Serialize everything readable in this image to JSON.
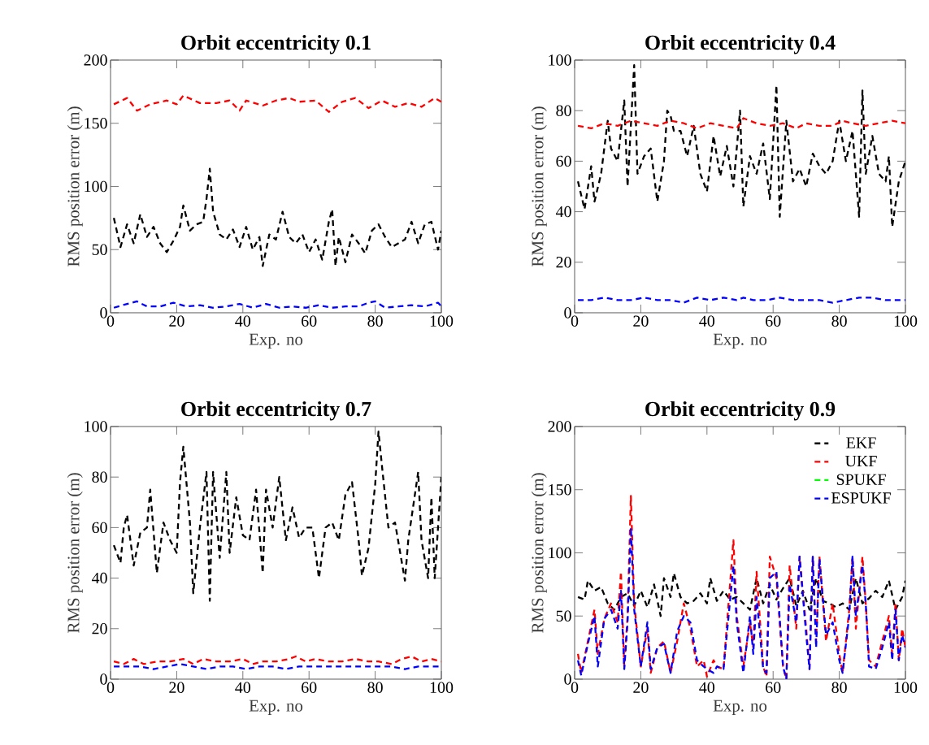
{
  "chart_data": [
    {
      "type": "line",
      "title": "Orbit eccentricity 0.1",
      "xlabel": "Exp. no",
      "ylabel": "RMS position error (m)",
      "xlim": [
        0,
        100
      ],
      "ylim": [
        0,
        200
      ],
      "xticks": [
        0,
        20,
        40,
        60,
        80,
        100
      ],
      "yticks": [
        0,
        50,
        100,
        150,
        200
      ],
      "line_style": "dashed",
      "marker": "none",
      "series": [
        {
          "color": "#000000",
          "x": [
            1,
            3,
            5,
            7,
            9,
            11,
            13,
            15,
            17,
            19,
            21,
            22,
            24,
            26,
            28,
            29,
            30,
            31,
            33,
            35,
            37,
            39,
            41,
            43,
            45,
            46,
            48,
            50,
            52,
            54,
            56,
            58,
            60,
            62,
            64,
            66,
            67,
            68,
            69,
            71,
            73,
            75,
            77,
            79,
            81,
            83,
            85,
            87,
            89,
            91,
            93,
            95,
            97,
            99,
            100
          ],
          "values": [
            75,
            52,
            70,
            55,
            78,
            60,
            68,
            55,
            48,
            57,
            68,
            85,
            65,
            70,
            72,
            90,
            114,
            80,
            62,
            58,
            66,
            52,
            68,
            50,
            60,
            37,
            62,
            58,
            80,
            60,
            55,
            62,
            48,
            58,
            42,
            72,
            82,
            37,
            60,
            40,
            62,
            55,
            47,
            65,
            70,
            60,
            52,
            55,
            58,
            72,
            55,
            70,
            72,
            50,
            65
          ]
        },
        {
          "color": "#ff0000",
          "x": [
            1,
            5,
            8,
            12,
            17,
            20,
            22,
            27,
            32,
            36,
            39,
            41,
            46,
            50,
            54,
            57,
            62,
            66,
            70,
            74,
            78,
            82,
            86,
            90,
            94,
            98,
            100
          ],
          "values": [
            165,
            170,
            160,
            165,
            168,
            165,
            172,
            166,
            166,
            168,
            160,
            168,
            164,
            168,
            170,
            167,
            168,
            159,
            167,
            170,
            162,
            168,
            163,
            166,
            163,
            170,
            167
          ]
        },
        {
          "color": "#0000ff",
          "x": [
            1,
            5,
            8,
            11,
            15,
            19,
            23,
            27,
            31,
            35,
            39,
            43,
            47,
            51,
            55,
            59,
            63,
            67,
            71,
            75,
            78,
            80,
            83,
            87,
            91,
            95,
            99,
            100
          ],
          "values": [
            4,
            7,
            9,
            5,
            5,
            8,
            5,
            6,
            4,
            5,
            7,
            4,
            7,
            4,
            5,
            4,
            6,
            4,
            5,
            5,
            8,
            9,
            4,
            5,
            6,
            5,
            8,
            5
          ]
        }
      ]
    },
    {
      "type": "line",
      "title": "Orbit eccentricity 0.4",
      "xlabel": "Exp. no",
      "ylabel": "RMS position error (m)",
      "xlim": [
        0,
        100
      ],
      "ylim": [
        0,
        100
      ],
      "xticks": [
        0,
        20,
        40,
        60,
        80,
        100
      ],
      "yticks": [
        0,
        20,
        40,
        60,
        80,
        100
      ],
      "line_style": "dashed",
      "marker": "none",
      "series": [
        {
          "color": "#000000",
          "x": [
            1,
            3,
            5,
            6,
            8,
            10,
            11,
            13,
            15,
            16,
            18,
            19,
            21,
            23,
            25,
            27,
            28,
            29,
            30,
            32,
            34,
            36,
            38,
            40,
            42,
            44,
            46,
            48,
            50,
            51,
            53,
            55,
            57,
            59,
            61,
            62,
            64,
            66,
            68,
            70,
            72,
            74,
            76,
            78,
            80,
            82,
            84,
            86,
            87,
            88,
            90,
            92,
            94,
            95,
            96,
            98,
            100
          ],
          "values": [
            52,
            41,
            58,
            44,
            55,
            76,
            65,
            60,
            84,
            50,
            98,
            55,
            62,
            65,
            44,
            60,
            80,
            78,
            72,
            72,
            62,
            74,
            55,
            48,
            70,
            54,
            66,
            50,
            80,
            42,
            62,
            55,
            67,
            45,
            90,
            38,
            76,
            52,
            57,
            50,
            63,
            58,
            55,
            60,
            76,
            60,
            72,
            38,
            88,
            55,
            70,
            55,
            52,
            62,
            34,
            52,
            60
          ]
        },
        {
          "color": "#ff0000",
          "x": [
            1,
            5,
            9,
            13,
            17,
            21,
            25,
            29,
            33,
            37,
            41,
            45,
            49,
            51,
            55,
            59,
            63,
            67,
            70,
            74,
            78,
            81,
            84,
            88,
            92,
            96,
            100
          ],
          "values": [
            74,
            73,
            75,
            74,
            76,
            75,
            74,
            76,
            75,
            73,
            75,
            74,
            73,
            77,
            75,
            74,
            75,
            73,
            75,
            74,
            74,
            76,
            75,
            74,
            75,
            76,
            75
          ]
        },
        {
          "color": "#0000ff",
          "x": [
            1,
            5,
            9,
            13,
            17,
            21,
            25,
            29,
            33,
            37,
            41,
            45,
            49,
            51,
            54,
            58,
            62,
            66,
            70,
            74,
            78,
            82,
            86,
            90,
            94,
            98,
            100
          ],
          "values": [
            5,
            5,
            6,
            5,
            5,
            6,
            5,
            5,
            4,
            6,
            5,
            6,
            5,
            6,
            5,
            5,
            6,
            5,
            5,
            5,
            4,
            5,
            6,
            6,
            5,
            5,
            5
          ]
        }
      ]
    },
    {
      "type": "line",
      "title": "Orbit eccentricity 0.7",
      "xlabel": "Exp. no",
      "ylabel": "RMS position error (m)",
      "xlim": [
        0,
        100
      ],
      "ylim": [
        0,
        100
      ],
      "xticks": [
        0,
        20,
        40,
        60,
        80,
        100
      ],
      "yticks": [
        0,
        20,
        40,
        60,
        80,
        100
      ],
      "line_style": "dashed",
      "marker": "none",
      "series": [
        {
          "color": "#000000",
          "x": [
            1,
            3,
            4,
            5,
            7,
            9,
            11,
            12,
            14,
            16,
            18,
            20,
            21,
            22,
            24,
            25,
            27,
            29,
            30,
            31,
            33,
            35,
            36,
            38,
            40,
            42,
            44,
            46,
            47,
            49,
            51,
            53,
            55,
            57,
            59,
            61,
            63,
            65,
            67,
            69,
            71,
            73,
            75,
            76,
            78,
            79,
            80,
            81,
            82,
            84,
            86,
            89,
            90,
            93,
            94,
            96,
            97,
            98,
            100
          ],
          "values": [
            53,
            46,
            60,
            65,
            45,
            58,
            60,
            75,
            42,
            62,
            55,
            50,
            78,
            92,
            62,
            34,
            60,
            82,
            31,
            82,
            48,
            82,
            50,
            72,
            57,
            55,
            75,
            42,
            75,
            60,
            80,
            55,
            68,
            56,
            60,
            60,
            40,
            60,
            62,
            55,
            73,
            78,
            55,
            41,
            52,
            65,
            77,
            98,
            85,
            60,
            62,
            39,
            55,
            82,
            55,
            40,
            72,
            40,
            80
          ]
        },
        {
          "color": "#ff0000",
          "x": [
            1,
            4,
            7,
            10,
            14,
            18,
            22,
            25,
            28,
            32,
            36,
            40,
            43,
            46,
            50,
            54,
            56,
            59,
            62,
            66,
            70,
            74,
            78,
            81,
            85,
            88,
            91,
            94,
            97,
            100
          ],
          "values": [
            7,
            6,
            8,
            6,
            7,
            7,
            8,
            6,
            8,
            7,
            7,
            8,
            6,
            7,
            7,
            8,
            9,
            7,
            8,
            7,
            7,
            8,
            7,
            7,
            6,
            8,
            9,
            7,
            8,
            7
          ]
        },
        {
          "color": "#0000ff",
          "x": [
            1,
            5,
            9,
            13,
            17,
            21,
            25,
            29,
            33,
            37,
            41,
            45,
            49,
            53,
            57,
            61,
            65,
            69,
            73,
            77,
            81,
            85,
            89,
            93,
            97,
            100
          ],
          "values": [
            5,
            5,
            5,
            4,
            5,
            6,
            5,
            4,
            5,
            5,
            4,
            5,
            5,
            4,
            5,
            5,
            5,
            5,
            5,
            5,
            5,
            5,
            4,
            5,
            5,
            5
          ]
        }
      ]
    },
    {
      "type": "line",
      "title": "Orbit eccentricity 0.9",
      "xlabel": "Exp. no",
      "ylabel": "RMS position error (m)",
      "xlim": [
        0,
        100
      ],
      "ylim": [
        0,
        200
      ],
      "xticks": [
        0,
        20,
        40,
        60,
        80,
        100
      ],
      "yticks": [
        0,
        50,
        100,
        150,
        200
      ],
      "line_style": "dashed",
      "marker": "none",
      "legend": "top right",
      "series": [
        {
          "name": "EKF",
          "color": "#000000",
          "x": [
            1,
            3,
            4,
            6,
            8,
            10,
            12,
            14,
            16,
            18,
            20,
            22,
            24,
            26,
            27,
            29,
            30,
            32,
            34,
            36,
            38,
            40,
            41,
            43,
            45,
            47,
            49,
            51,
            53,
            55,
            57,
            59,
            61,
            63,
            65,
            67,
            69,
            71,
            73,
            75,
            77,
            79,
            81,
            83,
            85,
            87,
            89,
            91,
            93,
            95,
            97,
            99,
            100
          ],
          "values": [
            65,
            63,
            78,
            70,
            73,
            60,
            55,
            65,
            68,
            58,
            70,
            57,
            75,
            50,
            80,
            65,
            84,
            65,
            60,
            62,
            68,
            60,
            80,
            62,
            70,
            63,
            65,
            60,
            55,
            80,
            60,
            75,
            63,
            72,
            80,
            58,
            70,
            55,
            80,
            62,
            60,
            57,
            60,
            55,
            80,
            60,
            64,
            70,
            65,
            78,
            55,
            65,
            78
          ]
        },
        {
          "name": "UKF",
          "color": "#ff0000",
          "x": [
            1,
            2,
            4,
            6,
            7,
            9,
            11,
            13,
            14,
            15,
            16,
            17,
            18,
            20,
            22,
            23,
            25,
            27,
            29,
            31,
            33,
            35,
            37,
            39,
            40,
            42,
            43,
            45,
            48,
            49,
            51,
            53,
            54,
            55,
            57,
            58,
            59,
            61,
            63,
            64,
            65,
            67,
            68,
            70,
            71,
            72,
            73,
            74,
            76,
            78,
            80,
            81,
            83,
            84,
            85,
            87,
            88,
            89,
            91,
            93,
            95,
            96,
            97,
            98,
            99,
            100
          ],
          "values": [
            20,
            5,
            30,
            55,
            20,
            48,
            60,
            45,
            85,
            10,
            50,
            145,
            60,
            10,
            40,
            5,
            25,
            30,
            5,
            30,
            60,
            40,
            10,
            15,
            2,
            15,
            10,
            8,
            110,
            50,
            10,
            45,
            25,
            85,
            10,
            2,
            97,
            80,
            10,
            0,
            90,
            40,
            97,
            40,
            8,
            97,
            30,
            97,
            30,
            60,
            20,
            5,
            55,
            97,
            40,
            97,
            60,
            15,
            10,
            30,
            50,
            20,
            60,
            15,
            40,
            25
          ]
        },
        {
          "name": "SPUKF",
          "color": "#00ff00"
        },
        {
          "name": "ESPUKF",
          "color": "#0000ff",
          "x": [
            1,
            2,
            4,
            6,
            7,
            9,
            11,
            13,
            14,
            15,
            16,
            17,
            18,
            20,
            22,
            23,
            25,
            27,
            29,
            31,
            33,
            35,
            37,
            39,
            40,
            42,
            43,
            45,
            48,
            49,
            51,
            53,
            54,
            55,
            57,
            58,
            59,
            61,
            63,
            64,
            65,
            67,
            68,
            70,
            71,
            72,
            73,
            74,
            76,
            78,
            80,
            81,
            83,
            84,
            85,
            87,
            88,
            89,
            91,
            93,
            95,
            96,
            97,
            98,
            99,
            100
          ],
          "values": [
            15,
            3,
            28,
            50,
            10,
            48,
            55,
            40,
            70,
            8,
            45,
            120,
            55,
            10,
            45,
            8,
            25,
            28,
            5,
            38,
            50,
            45,
            15,
            10,
            8,
            5,
            10,
            8,
            90,
            45,
            5,
            50,
            20,
            65,
            8,
            5,
            80,
            85,
            10,
            0,
            75,
            45,
            97,
            35,
            8,
            97,
            25,
            95,
            35,
            45,
            15,
            5,
            50,
            97,
            50,
            90,
            60,
            10,
            8,
            25,
            45,
            15,
            55,
            15,
            35,
            25
          ]
        }
      ]
    }
  ]
}
